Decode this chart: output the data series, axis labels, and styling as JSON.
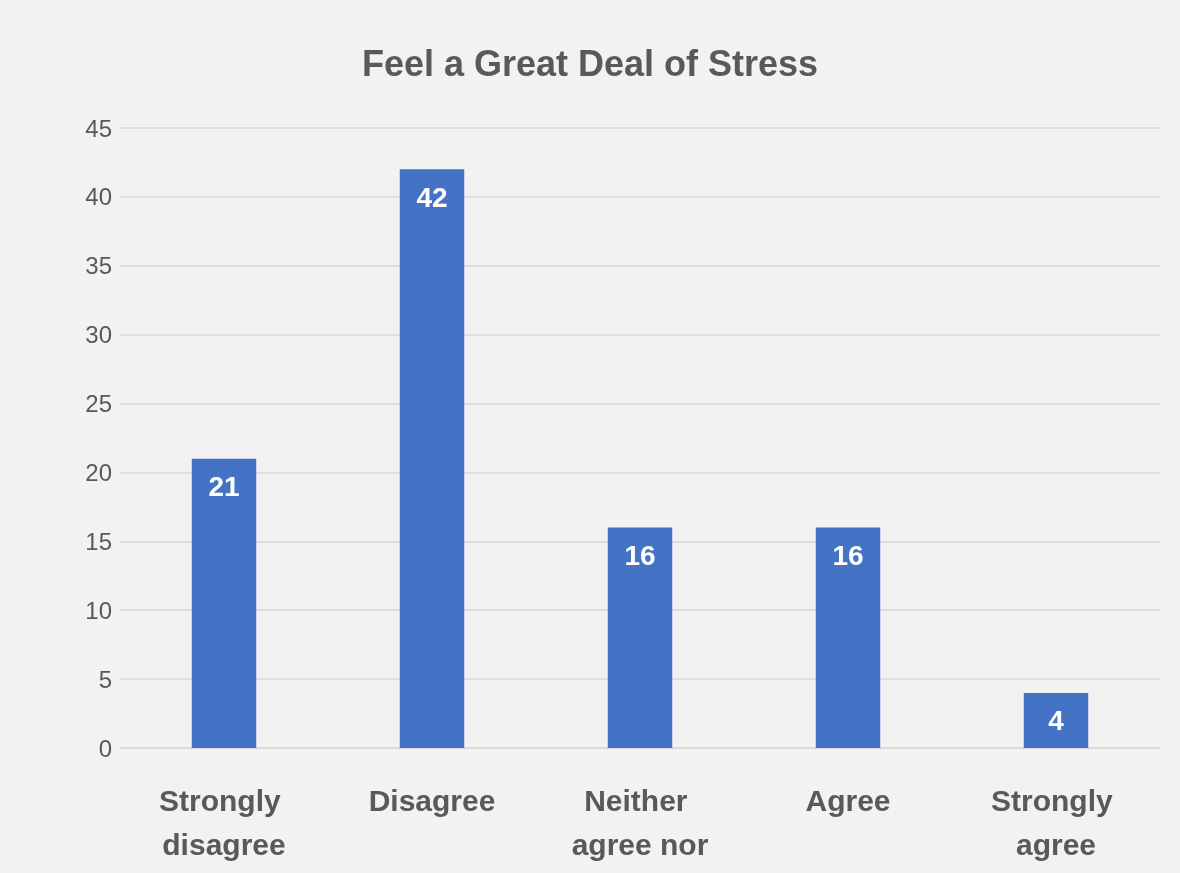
{
  "chart_data": {
    "type": "bar",
    "title": "Feel a Great Deal of Stress",
    "categories": [
      "Strongly disagree",
      "Disagree",
      "Neither agree nor",
      "Agree",
      "Strongly agree"
    ],
    "values": [
      21,
      42,
      16,
      16,
      4
    ],
    "color": "#4472c4",
    "ylim": [
      0,
      45
    ],
    "yticks": [
      0,
      5,
      10,
      15,
      20,
      25,
      30,
      35,
      40,
      45
    ],
    "grid": "y",
    "data_labels": true
  }
}
